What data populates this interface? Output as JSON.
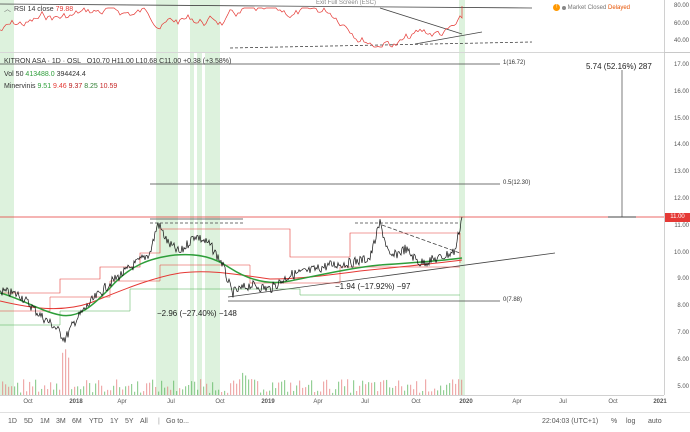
{
  "rsi": {
    "label": "RSI 14 close",
    "value": "79.88",
    "exit_fullscreen": "Exit Full Screen (ESC)",
    "scale": [
      "80.00",
      "60.00",
      "40.00"
    ]
  },
  "market_status": {
    "closed": "Market Closed",
    "delayed": "Delayed"
  },
  "header": {
    "symbol": "KITRON ASA",
    "interval": "1D",
    "exchange": "OSL",
    "o": "O10.70",
    "h": "H11.00",
    "l": "L10.68",
    "c": "C11.00",
    "chg": "+0.38 (+3.58%)"
  },
  "vol": {
    "label": "Vol 50",
    "v1": "413488.0",
    "v2": "394424.4"
  },
  "minervini": {
    "label": "Minervinis",
    "values": [
      "9.51",
      "9.46",
      "9.37",
      "8.25",
      "10.59"
    ]
  },
  "annotations": {
    "fib_1": "1(16.72)",
    "fib_05": "0.5(12.30)",
    "fib_0": "0(7.88)",
    "measure_top": "5.74 (52.16%) 287",
    "measure_left": "−2.96 (−27.40%) −148",
    "measure_mid": "−1.94 (−17.92%) −97"
  },
  "price_scale": [
    "17.00",
    "16.00",
    "15.00",
    "14.00",
    "13.00",
    "12.00",
    "11.00",
    "10.00",
    "9.00",
    "8.00",
    "7.00",
    "6.00",
    "5.00"
  ],
  "last_price": "11.00",
  "time_axis": [
    "Oct",
    "2018",
    "Apr",
    "Jul",
    "Oct",
    "2019",
    "Apr",
    "Jul",
    "Oct",
    "2020",
    "Apr",
    "Jul",
    "Oct",
    "2021"
  ],
  "bottom": {
    "ranges": [
      "1D",
      "5D",
      "1M",
      "3M",
      "6M",
      "YTD",
      "1Y",
      "5Y",
      "All"
    ],
    "goto": "Go to...",
    "clock": "22:04:03 (UTC+1)",
    "pct": "%",
    "log": "log",
    "auto": "auto"
  },
  "colors": {
    "rsi": "#e53935",
    "candle": "#222222",
    "ma_green": "#2e9e3a",
    "ma_red": "#e53935",
    "highlight": "#c8ecc8",
    "volume": "#4caf50",
    "last_price_line": "#e53935"
  }
}
